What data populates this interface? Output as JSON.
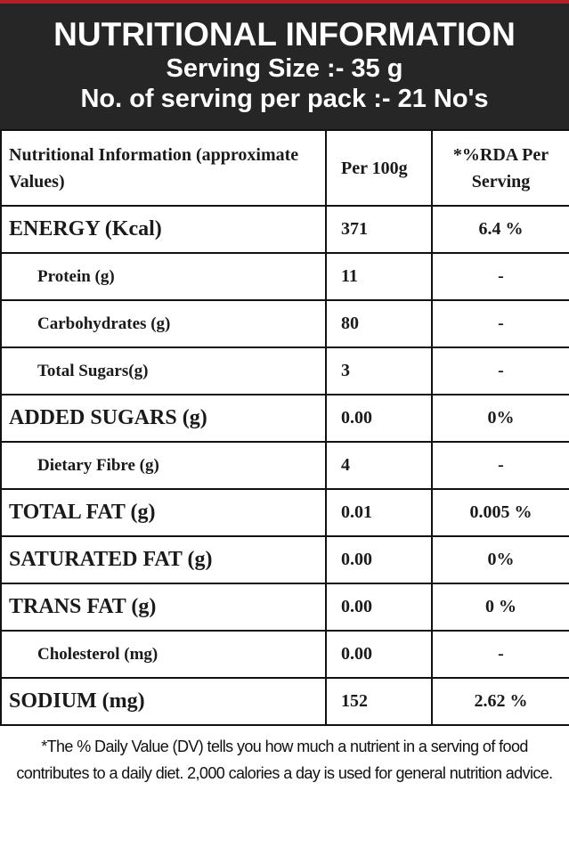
{
  "header": {
    "title": "NUTRITIONAL INFORMATION",
    "serving_size": "Serving Size :- 35 g",
    "servings_per_pack": "No. of serving per pack :- 21 No's"
  },
  "table": {
    "columns": [
      "Nutritional Information (approximate Values)",
      "Per 100g",
      "*%RDA Per Serving"
    ],
    "rows": [
      [
        "ENERGY (Kcal)",
        "371",
        "6.4 %"
      ],
      [
        "Protein (g)",
        "11",
        "-"
      ],
      [
        "Carbohydrates (g)",
        "80",
        "-"
      ],
      [
        "Total Sugars(g)",
        "3",
        "-"
      ],
      [
        "ADDED SUGARS (g)",
        "0.00",
        "0%"
      ],
      [
        "Dietary Fibre (g)",
        "4",
        "-"
      ],
      [
        "TOTAL FAT (g)",
        "0.01",
        "0.005 %"
      ],
      [
        "SATURATED FAT (g)",
        "0.00",
        "0%"
      ],
      [
        "TRANS FAT (g)",
        "0.00",
        "0 %"
      ],
      [
        "Cholesterol (mg)",
        "0.00",
        "-"
      ],
      [
        "SODIUM (mg)",
        "152",
        "2.62 %"
      ]
    ]
  },
  "footnote": "*The % Daily Value (DV) tells you how much a nutrient in a serving of food contributes to a daily diet. 2,000 calories a day is used for general nutrition advice."
}
